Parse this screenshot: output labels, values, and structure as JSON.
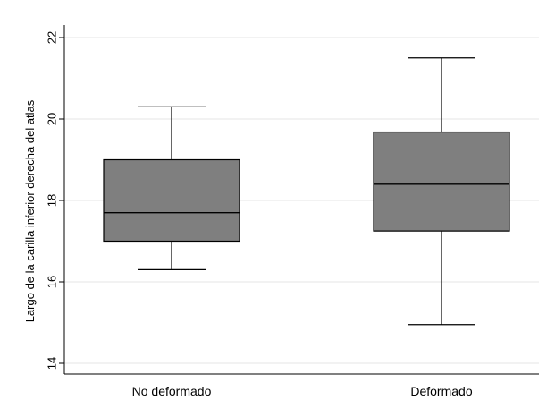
{
  "chart_data": {
    "type": "box",
    "ylabel": "Largo de la carilla inferior derecha del atlas",
    "ylim": [
      14,
      22
    ],
    "yticks": [
      14,
      16,
      18,
      20,
      22
    ],
    "ytick_labels": [
      "14",
      "16",
      "18",
      "20",
      "22"
    ],
    "grid": true,
    "categories": [
      "No deformado",
      "Deformado"
    ],
    "boxes": [
      {
        "category": "No deformado",
        "whisker_low": 16.3,
        "q1": 17.0,
        "median": 17.7,
        "q3": 19.0,
        "whisker_high": 20.3
      },
      {
        "category": "Deformado",
        "whisker_low": 14.95,
        "q1": 17.25,
        "median": 18.4,
        "q3": 19.68,
        "whisker_high": 21.5
      }
    ],
    "box_color": "#7f7f7f",
    "line_color": "#000000",
    "grid_color": "#e6e6e6"
  }
}
